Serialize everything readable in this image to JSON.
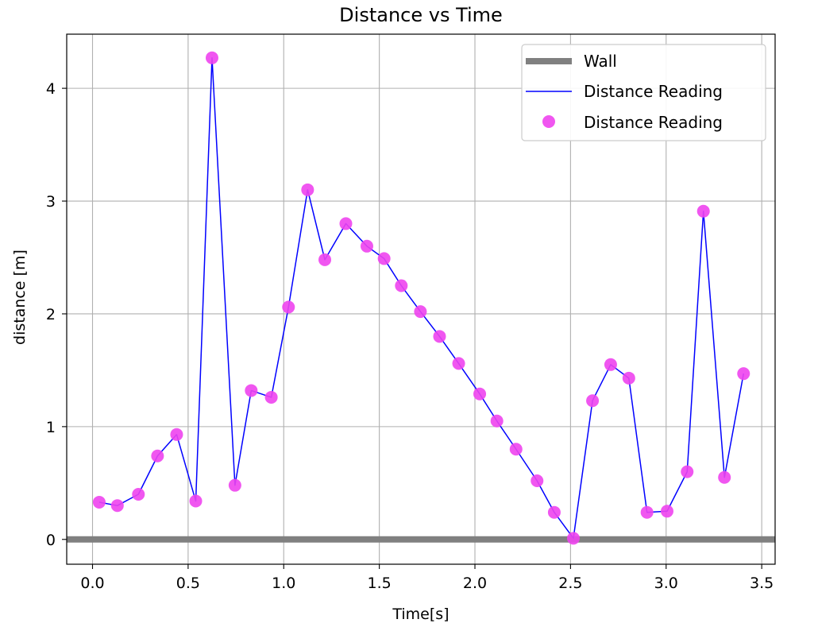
{
  "chart_data": {
    "type": "line",
    "title": "Distance vs Time",
    "xlabel": "Time[s]",
    "ylabel": "distance [m]",
    "xlim": [
      -0.135,
      3.57
    ],
    "ylim": [
      -0.22,
      4.48
    ],
    "xticks": [
      0.0,
      0.5,
      1.0,
      1.5,
      2.0,
      2.5,
      3.0,
      3.5
    ],
    "xtick_labels": [
      "0.0",
      "0.5",
      "1.0",
      "1.5",
      "2.0",
      "2.5",
      "3.0",
      "3.5"
    ],
    "yticks": [
      0,
      1,
      2,
      3,
      4
    ],
    "ytick_labels": [
      "0",
      "1",
      "2",
      "3",
      "4"
    ],
    "grid": true,
    "legend_position": "top-right",
    "colors": {
      "wall": "#808080",
      "line": "#0000ff",
      "markers": "#ee44ee"
    },
    "series": [
      {
        "name": "Wall",
        "kind": "hline",
        "y": 0
      },
      {
        "name": "Distance Reading",
        "kind": "line",
        "x": [
          0.035,
          0.13,
          0.24,
          0.34,
          0.44,
          0.54,
          0.625,
          0.745,
          0.83,
          0.935,
          1.025,
          1.125,
          1.215,
          1.325,
          1.435,
          1.525,
          1.615,
          1.715,
          1.815,
          1.915,
          2.025,
          2.115,
          2.215,
          2.325,
          2.415,
          2.515,
          2.615,
          2.71,
          2.805,
          2.9,
          3.005,
          3.11,
          3.195,
          3.305,
          3.405
        ],
        "y": [
          0.33,
          0.3,
          0.4,
          0.74,
          0.93,
          0.34,
          4.27,
          0.48,
          1.32,
          1.26,
          2.06,
          3.1,
          2.48,
          2.8,
          2.6,
          2.49,
          2.25,
          2.02,
          1.8,
          1.56,
          1.29,
          1.05,
          0.8,
          0.52,
          0.24,
          0.01,
          1.23,
          1.55,
          1.43,
          0.24,
          0.25,
          0.6,
          2.91,
          0.55,
          1.47
        ]
      },
      {
        "name": "Distance Reading",
        "kind": "scatter",
        "x": [
          0.035,
          0.13,
          0.24,
          0.34,
          0.44,
          0.54,
          0.625,
          0.745,
          0.83,
          0.935,
          1.025,
          1.125,
          1.215,
          1.325,
          1.435,
          1.525,
          1.615,
          1.715,
          1.815,
          1.915,
          2.025,
          2.115,
          2.215,
          2.325,
          2.415,
          2.515,
          2.615,
          2.71,
          2.805,
          2.9,
          3.005,
          3.11,
          3.195,
          3.305,
          3.405
        ],
        "y": [
          0.33,
          0.3,
          0.4,
          0.74,
          0.93,
          0.34,
          4.27,
          0.48,
          1.32,
          1.26,
          2.06,
          3.1,
          2.48,
          2.8,
          2.6,
          2.49,
          2.25,
          2.02,
          1.8,
          1.56,
          1.29,
          1.05,
          0.8,
          0.52,
          0.24,
          0.01,
          1.23,
          1.55,
          1.43,
          0.24,
          0.25,
          0.6,
          2.91,
          0.55,
          1.47
        ]
      }
    ]
  }
}
